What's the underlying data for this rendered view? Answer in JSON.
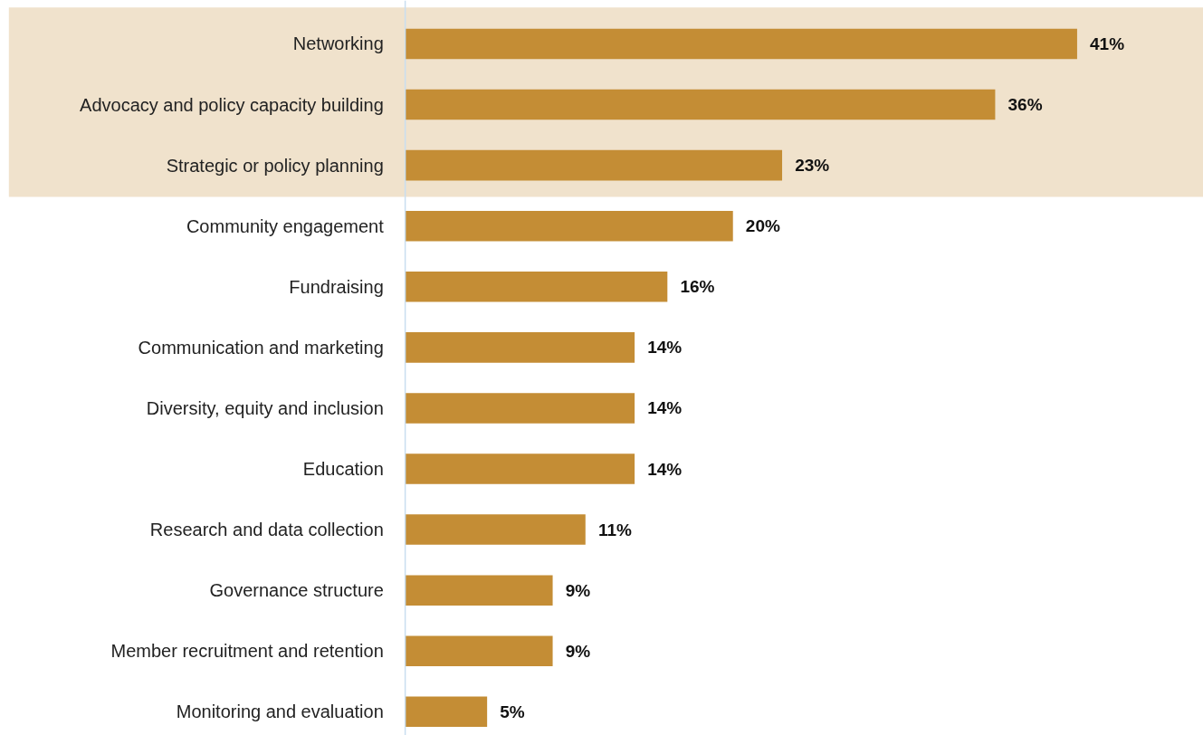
{
  "chart_data": {
    "type": "bar",
    "orientation": "horizontal",
    "categories": [
      "Networking",
      "Advocacy and policy capacity building",
      "Strategic or policy planning",
      "Community engagement",
      "Fundraising",
      "Communication and marketing",
      "Diversity, equity and inclusion",
      "Education",
      "Research and data collection",
      "Governance structure",
      "Member recruitment and retention",
      "Monitoring and evaluation"
    ],
    "values": [
      41,
      36,
      23,
      20,
      16,
      14,
      14,
      14,
      11,
      9,
      9,
      5
    ],
    "value_labels": [
      "41%",
      "36%",
      "23%",
      "20%",
      "16%",
      "14%",
      "14%",
      "14%",
      "11%",
      "9%",
      "9%",
      "5%"
    ],
    "color": "#c48d35",
    "bands": [
      {
        "axis": "y",
        "from": "Networking",
        "to": "Strategic or policy planning",
        "color": "#f0e2cc"
      }
    ],
    "grid": false
  }
}
